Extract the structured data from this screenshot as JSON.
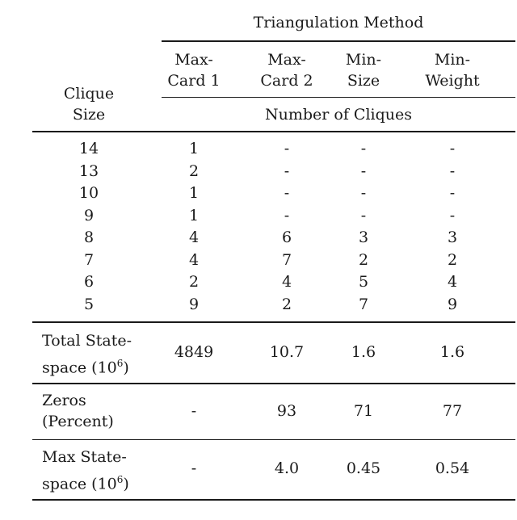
{
  "table": {
    "title": "Triangulation Method",
    "row_header": [
      "Clique",
      "Size"
    ],
    "columns": [
      [
        "Max-",
        "Card 1"
      ],
      [
        "Max-",
        "Card 2"
      ],
      [
        "Min-",
        "Size"
      ],
      [
        "Min-",
        "Weight"
      ]
    ],
    "subheader": "Number of Cliques",
    "clique_rows": [
      {
        "size": "14",
        "values": [
          "1",
          "-",
          "-",
          "-"
        ]
      },
      {
        "size": "13",
        "values": [
          "2",
          "-",
          "-",
          "-"
        ]
      },
      {
        "size": "10",
        "values": [
          "1",
          "-",
          "-",
          "-"
        ]
      },
      {
        "size": "9",
        "values": [
          "1",
          "-",
          "-",
          "-"
        ]
      },
      {
        "size": "8",
        "values": [
          "4",
          "6",
          "3",
          "3"
        ]
      },
      {
        "size": "7",
        "values": [
          "4",
          "7",
          "2",
          "2"
        ]
      },
      {
        "size": "6",
        "values": [
          "2",
          "4",
          "5",
          "4"
        ]
      },
      {
        "size": "5",
        "values": [
          "9",
          "2",
          "7",
          "9"
        ]
      }
    ],
    "summary_rows": [
      {
        "label": [
          "Total State-",
          "space (10",
          "6",
          ")"
        ],
        "values": [
          "4849",
          "10.7",
          "1.6",
          "1.6"
        ]
      },
      {
        "label": [
          "Zeros",
          "(Percent)"
        ],
        "values": [
          "-",
          "93",
          "71",
          "77"
        ]
      },
      {
        "label": [
          "Max State-",
          "space (10",
          "6",
          ")"
        ],
        "values": [
          "-",
          "4.0",
          "0.45",
          "0.54"
        ]
      }
    ]
  }
}
